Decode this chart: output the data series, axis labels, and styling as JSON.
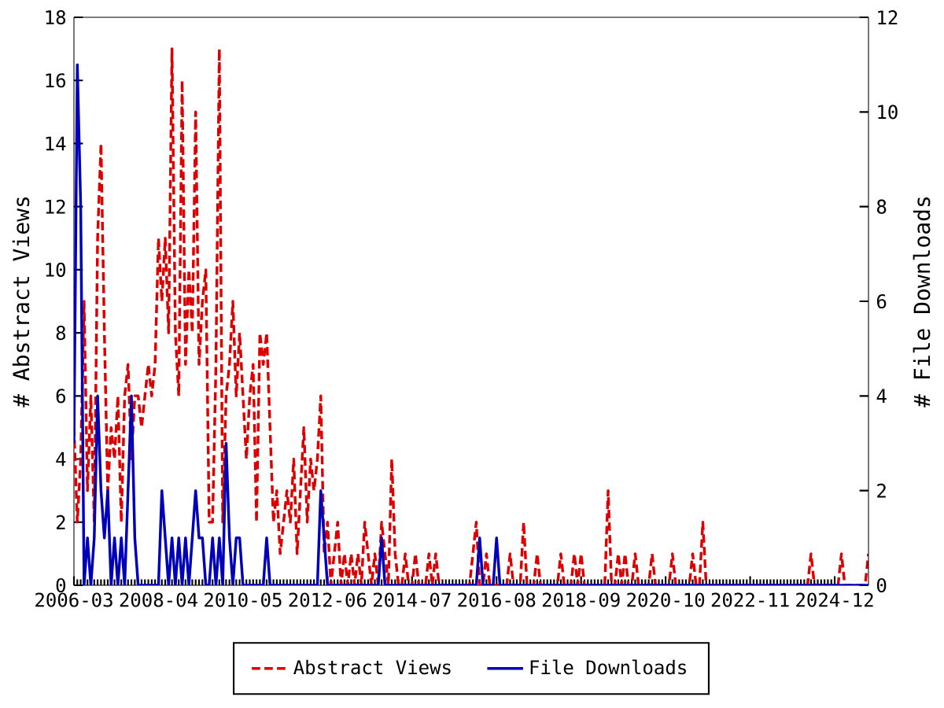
{
  "chart_data": {
    "type": "line",
    "ylabel": "# Abstract Views",
    "y2label": "# File Downloads",
    "xlim": [
      "2006-03",
      "2025-10"
    ],
    "xticks": [
      "2006-03",
      "2008-04",
      "2010-05",
      "2012-06",
      "2014-07",
      "2016-08",
      "2018-09",
      "2020-10",
      "2022-11",
      "2024-12"
    ],
    "ylim": [
      0,
      18
    ],
    "yticks": [
      0,
      2,
      4,
      6,
      8,
      10,
      12,
      14,
      16,
      18
    ],
    "y2lim": [
      0,
      12
    ],
    "y2ticks": [
      0,
      2,
      4,
      6,
      8,
      10,
      12
    ],
    "legend": "bottom",
    "grid": false,
    "series": [
      {
        "name": "Abstract Views",
        "color": "#dd0000",
        "line_style": "dashed",
        "axis": "y",
        "x": [
          "2006-03",
          "2006-04",
          "2006-05",
          "2006-06",
          "2006-07",
          "2006-08",
          "2006-09",
          "2006-10",
          "2006-11",
          "2006-12",
          "2007-01",
          "2007-02",
          "2007-03",
          "2007-04",
          "2007-05",
          "2007-06",
          "2007-07",
          "2007-08",
          "2007-09",
          "2007-10",
          "2007-11",
          "2007-12",
          "2008-01",
          "2008-02",
          "2008-03",
          "2008-04",
          "2008-05",
          "2008-06",
          "2008-07",
          "2008-08",
          "2008-09",
          "2008-10",
          "2008-11",
          "2008-12",
          "2009-01",
          "2009-02",
          "2009-03",
          "2009-04",
          "2009-05",
          "2009-06",
          "2009-07",
          "2009-08",
          "2009-09",
          "2009-10",
          "2009-11",
          "2009-12",
          "2010-01",
          "2010-02",
          "2010-03",
          "2010-04",
          "2010-05",
          "2010-06",
          "2010-07",
          "2010-08",
          "2010-09",
          "2010-10",
          "2010-11",
          "2010-12",
          "2011-01",
          "2011-02",
          "2011-03",
          "2011-04",
          "2011-05",
          "2011-06",
          "2011-07",
          "2011-08",
          "2011-09",
          "2011-10",
          "2011-11",
          "2011-12",
          "2012-01",
          "2012-02",
          "2012-03",
          "2012-04",
          "2012-05",
          "2012-06",
          "2012-07",
          "2012-08",
          "2012-09",
          "2012-10",
          "2012-11",
          "2012-12",
          "2013-01",
          "2013-02",
          "2013-03",
          "2013-04",
          "2013-05",
          "2013-06",
          "2013-07",
          "2013-08",
          "2013-09",
          "2013-10",
          "2013-11",
          "2013-12",
          "2014-01",
          "2014-02",
          "2014-03",
          "2014-04",
          "2014-05",
          "2014-06",
          "2014-07",
          "2014-08",
          "2014-09",
          "2014-11",
          "2014-12",
          "2015-01",
          "2015-02",
          "2015-03",
          "2015-12",
          "2016-01",
          "2016-02",
          "2016-03",
          "2016-04",
          "2016-05",
          "2016-06",
          "2016-11",
          "2016-12",
          "2017-01",
          "2017-03",
          "2017-04",
          "2017-05",
          "2017-07",
          "2017-08",
          "2017-09",
          "2018-02",
          "2018-03",
          "2018-04",
          "2018-06",
          "2018-07",
          "2018-08",
          "2018-09",
          "2018-10",
          "2019-04",
          "2019-05",
          "2019-06",
          "2019-07",
          "2019-08",
          "2019-09",
          "2019-10",
          "2019-11",
          "2019-12",
          "2020-01",
          "2020-02",
          "2020-05",
          "2020-06",
          "2020-07",
          "2020-11",
          "2020-12",
          "2021-01",
          "2021-05",
          "2021-06",
          "2021-07",
          "2021-08",
          "2021-09",
          "2021-10",
          "2024-04",
          "2024-05",
          "2024-06",
          "2025-01",
          "2025-02",
          "2025-03",
          "2025-09",
          "2025-10"
        ],
        "values": [
          5,
          2,
          4,
          9,
          3,
          6,
          2,
          11,
          14,
          8,
          3,
          5,
          4,
          6,
          2,
          6,
          7,
          4,
          6,
          6,
          5,
          6,
          7,
          6,
          7,
          11,
          9,
          11,
          8,
          17,
          8,
          6,
          16,
          7,
          10,
          8,
          15,
          7,
          9,
          10,
          2,
          2,
          7,
          17,
          2,
          6,
          7,
          9,
          6,
          8,
          6,
          4,
          6,
          7,
          2,
          8,
          7,
          8,
          5,
          2,
          3,
          1,
          2,
          3,
          2,
          4,
          1,
          3,
          5,
          2,
          4,
          3,
          4,
          6,
          1,
          2,
          0,
          1,
          2,
          0,
          1,
          0,
          1,
          0,
          1,
          0,
          2,
          1,
          0,
          1,
          0,
          2,
          1,
          0,
          4,
          1,
          0,
          0,
          1,
          0,
          0,
          1,
          0,
          0,
          1,
          0,
          1,
          0,
          0,
          1,
          2,
          0,
          0,
          1,
          0,
          0,
          1,
          0,
          0,
          2,
          0,
          0,
          1,
          0,
          0,
          1,
          0,
          0,
          1,
          0,
          1,
          0,
          0,
          3,
          0,
          0,
          1,
          0,
          1,
          0,
          0,
          1,
          0,
          0,
          1,
          0,
          0,
          1,
          0,
          0,
          1,
          0,
          0,
          2,
          0,
          0,
          1,
          0,
          0,
          1,
          0,
          0,
          1
        ]
      },
      {
        "name": "File Downloads",
        "color": "#0000bb",
        "line_style": "solid",
        "axis": "y2",
        "x": [
          "2006-03",
          "2006-04",
          "2006-05",
          "2006-06",
          "2006-07",
          "2006-08",
          "2006-09",
          "2006-10",
          "2006-11",
          "2006-12",
          "2007-01",
          "2007-02",
          "2007-03",
          "2007-04",
          "2007-05",
          "2007-06",
          "2007-07",
          "2007-08",
          "2007-09",
          "2007-10",
          "2007-11",
          "2007-12",
          "2008-01",
          "2008-02",
          "2008-03",
          "2008-04",
          "2008-05",
          "2008-06",
          "2008-07",
          "2008-08",
          "2008-09",
          "2008-10",
          "2008-11",
          "2008-12",
          "2009-01",
          "2009-02",
          "2009-03",
          "2009-04",
          "2009-05",
          "2009-06",
          "2009-07",
          "2009-08",
          "2009-09",
          "2009-10",
          "2009-11",
          "2009-12",
          "2010-01",
          "2010-02",
          "2010-03",
          "2010-04",
          "2010-05",
          "2010-06",
          "2010-07",
          "2010-08",
          "2010-09",
          "2010-10",
          "2010-11",
          "2010-12",
          "2011-01",
          "2012-03",
          "2012-04",
          "2012-05",
          "2012-06",
          "2013-09",
          "2013-10",
          "2013-11",
          "2016-02",
          "2016-03",
          "2016-04",
          "2016-07",
          "2016-08",
          "2016-09",
          "2025-10"
        ],
        "values": [
          3,
          11,
          8,
          0,
          1,
          0,
          1,
          4,
          2,
          1,
          2,
          0,
          1,
          0,
          1,
          0,
          2,
          4,
          1,
          0,
          0,
          0,
          0,
          0,
          0,
          0,
          2,
          1,
          0,
          1,
          0,
          1,
          0,
          1,
          0,
          1,
          2,
          1,
          1,
          0,
          0,
          1,
          0,
          1,
          0,
          3,
          1,
          0,
          1,
          1,
          0,
          0,
          0,
          0,
          0,
          0,
          0,
          1,
          0,
          0,
          2,
          1,
          0,
          0,
          1,
          0,
          0,
          1,
          0,
          0,
          1,
          0,
          0
        ]
      }
    ]
  }
}
